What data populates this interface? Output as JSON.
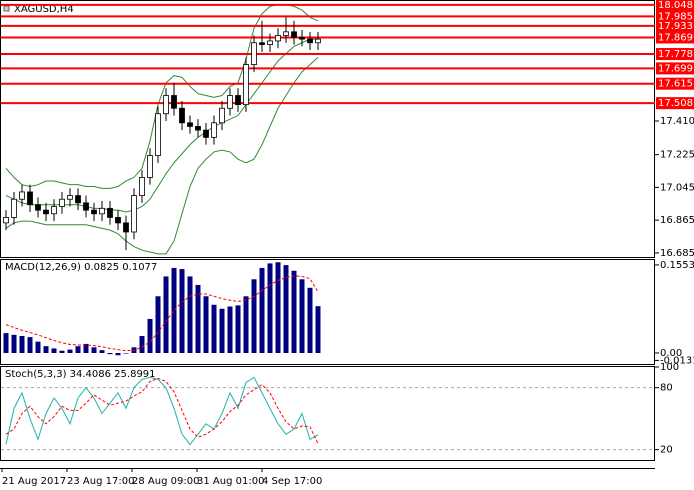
{
  "chart_data": [
    {
      "type": "candlestick",
      "title": "XAGUSD,H4",
      "open": [
        16.85,
        16.88,
        16.98,
        17.02,
        16.95,
        16.92,
        16.9,
        16.94,
        16.98,
        17.0,
        16.96,
        16.92,
        16.9,
        16.93,
        16.88,
        16.85,
        16.8,
        17.0,
        17.1,
        17.22,
        17.45,
        17.55,
        17.48,
        17.4,
        17.38,
        17.36,
        17.32,
        17.4,
        17.48,
        17.55,
        17.5,
        17.72,
        17.84,
        17.83,
        17.85,
        17.88,
        17.9,
        17.87,
        17.86,
        17.84
      ],
      "high": [
        16.92,
        17.02,
        17.06,
        17.06,
        16.99,
        16.96,
        16.98,
        17.02,
        17.04,
        17.04,
        17.0,
        16.96,
        16.97,
        16.97,
        16.92,
        16.89,
        17.04,
        17.14,
        17.26,
        17.49,
        17.59,
        17.62,
        17.52,
        17.44,
        17.42,
        17.4,
        17.44,
        17.52,
        17.59,
        17.59,
        17.76,
        17.88,
        17.96,
        17.89,
        17.92,
        17.98,
        17.96,
        17.91,
        17.9,
        17.9
      ],
      "low": [
        16.81,
        16.84,
        16.94,
        16.91,
        16.88,
        16.86,
        16.86,
        16.9,
        16.94,
        16.92,
        16.88,
        16.86,
        16.86,
        16.84,
        16.81,
        16.7,
        16.76,
        16.96,
        17.06,
        17.18,
        17.41,
        17.44,
        17.36,
        17.34,
        17.32,
        17.28,
        17.28,
        17.36,
        17.44,
        17.46,
        17.46,
        17.68,
        17.79,
        17.79,
        17.81,
        17.84,
        17.83,
        17.82,
        17.8,
        17.8
      ],
      "close": [
        16.88,
        16.98,
        17.02,
        16.95,
        16.92,
        16.9,
        16.94,
        16.98,
        17.0,
        16.96,
        16.92,
        16.9,
        16.93,
        16.88,
        16.85,
        16.8,
        17.0,
        17.1,
        17.22,
        17.45,
        17.55,
        17.48,
        17.4,
        17.38,
        17.36,
        17.32,
        17.4,
        17.48,
        17.55,
        17.5,
        17.72,
        17.84,
        17.83,
        17.85,
        17.88,
        17.9,
        17.87,
        17.86,
        17.84,
        17.86
      ],
      "bands": {
        "color": "#2e8b2e",
        "upper": [
          17.15,
          17.1,
          17.06,
          17.05,
          17.06,
          17.08,
          17.08,
          17.07,
          17.06,
          17.06,
          17.05,
          17.05,
          17.04,
          17.04,
          17.05,
          17.08,
          17.1,
          17.15,
          17.3,
          17.5,
          17.62,
          17.66,
          17.65,
          17.6,
          17.56,
          17.55,
          17.54,
          17.55,
          17.6,
          17.62,
          17.75,
          17.92,
          18.0,
          18.04,
          18.05,
          18.05,
          18.04,
          18.02,
          17.98,
          17.96
        ],
        "middle": [
          17.0,
          16.98,
          16.96,
          16.95,
          16.95,
          16.95,
          16.95,
          16.95,
          16.95,
          16.95,
          16.94,
          16.93,
          16.93,
          16.92,
          16.92,
          16.91,
          16.92,
          16.94,
          16.98,
          17.05,
          17.12,
          17.18,
          17.23,
          17.28,
          17.32,
          17.35,
          17.38,
          17.4,
          17.42,
          17.44,
          17.5,
          17.56,
          17.62,
          17.68,
          17.74,
          17.78,
          17.82,
          17.84,
          17.86,
          17.86
        ],
        "lower": [
          16.82,
          16.85,
          16.86,
          16.86,
          16.85,
          16.84,
          16.84,
          16.84,
          16.84,
          16.84,
          16.84,
          16.83,
          16.82,
          16.81,
          16.79,
          16.75,
          16.72,
          16.7,
          16.69,
          16.68,
          16.68,
          16.75,
          16.9,
          17.05,
          17.15,
          17.2,
          17.24,
          17.25,
          17.24,
          17.2,
          17.18,
          17.2,
          17.28,
          17.38,
          17.48,
          17.55,
          17.62,
          17.68,
          17.72,
          17.76
        ]
      },
      "levels": [
        {
          "value": 18.048,
          "label": "18.048"
        },
        {
          "value": 17.985,
          "label": "17.985"
        },
        {
          "value": 17.933,
          "label": "17.933"
        },
        {
          "value": 17.869,
          "label": "17.869"
        },
        {
          "value": 17.778,
          "label": "17.778"
        },
        {
          "value": 17.699,
          "label": "17.699"
        },
        {
          "value": 17.615,
          "label": "17.615"
        },
        {
          "value": 17.508,
          "label": "17.508"
        }
      ],
      "level_color": "#ff0000",
      "ylim": [
        16.657,
        18.075
      ],
      "yticks": [
        {
          "value": 17.41,
          "label": "17.410"
        },
        {
          "value": 17.225,
          "label": "17.225"
        },
        {
          "value": 17.045,
          "label": "17.045"
        },
        {
          "value": 16.865,
          "label": "16.865"
        },
        {
          "value": 16.685,
          "label": "16.685"
        }
      ],
      "x_labels": [
        "21 Aug 2017",
        "23 Aug 17:00",
        "28 Aug 09:00",
        "31 Aug 01:00",
        "4 Sep 17:00"
      ]
    },
    {
      "type": "macd",
      "title": "MACD(12,26,9) 0.0825 0.1077",
      "histogram": {
        "color": "#000080",
        "values": [
          0.035,
          0.032,
          0.03,
          0.028,
          0.02,
          0.012,
          0.008,
          0.004,
          0.006,
          0.012,
          0.016,
          0.01,
          0.005,
          -0.002,
          -0.004,
          -0.001,
          0.01,
          0.03,
          0.06,
          0.1,
          0.135,
          0.15,
          0.148,
          0.135,
          0.12,
          0.1,
          0.085,
          0.078,
          0.082,
          0.084,
          0.1,
          0.13,
          0.15,
          0.158,
          0.16,
          0.155,
          0.145,
          0.13,
          0.115,
          0.0825
        ]
      },
      "signal": {
        "color": "#ff0000",
        "values": [
          0.05,
          0.045,
          0.04,
          0.036,
          0.032,
          0.027,
          0.022,
          0.018,
          0.015,
          0.014,
          0.014,
          0.013,
          0.011,
          0.008,
          0.006,
          0.004,
          0.005,
          0.01,
          0.02,
          0.036,
          0.056,
          0.075,
          0.09,
          0.1,
          0.104,
          0.104,
          0.1,
          0.096,
          0.093,
          0.091,
          0.093,
          0.1,
          0.11,
          0.12,
          0.128,
          0.133,
          0.136,
          0.135,
          0.131,
          0.1077
        ]
      },
      "ylim": [
        -0.0212,
        0.164
      ],
      "yticks": [
        0.1553,
        {
          "value": 0,
          "label": "0.00"
        },
        -0.0131
      ]
    },
    {
      "type": "stochastic",
      "title": "Stoch(5,3,3) 34.4086 25.8991",
      "main": {
        "color": "#20b2aa",
        "values": [
          25,
          60,
          75,
          50,
          30,
          55,
          70,
          60,
          45,
          70,
          80,
          70,
          55,
          65,
          75,
          60,
          80,
          88,
          90,
          88,
          80,
          60,
          35,
          25,
          35,
          45,
          40,
          55,
          75,
          60,
          85,
          90,
          75,
          60,
          45,
          35,
          40,
          55,
          30,
          34.4086
        ]
      },
      "signal": {
        "color": "#ff0000",
        "values": [
          35,
          40,
          55,
          62,
          52,
          45,
          52,
          62,
          58,
          58,
          65,
          73,
          68,
          63,
          65,
          67,
          72,
          76,
          86,
          89,
          86,
          76,
          58,
          40,
          32,
          35,
          40,
          47,
          57,
          63,
          73,
          78,
          83,
          75,
          60,
          47,
          40,
          43,
          42,
          25.8991
        ]
      },
      "ylim": [
        10,
        100
      ],
      "yticks": [
        100,
        80,
        20
      ]
    }
  ]
}
